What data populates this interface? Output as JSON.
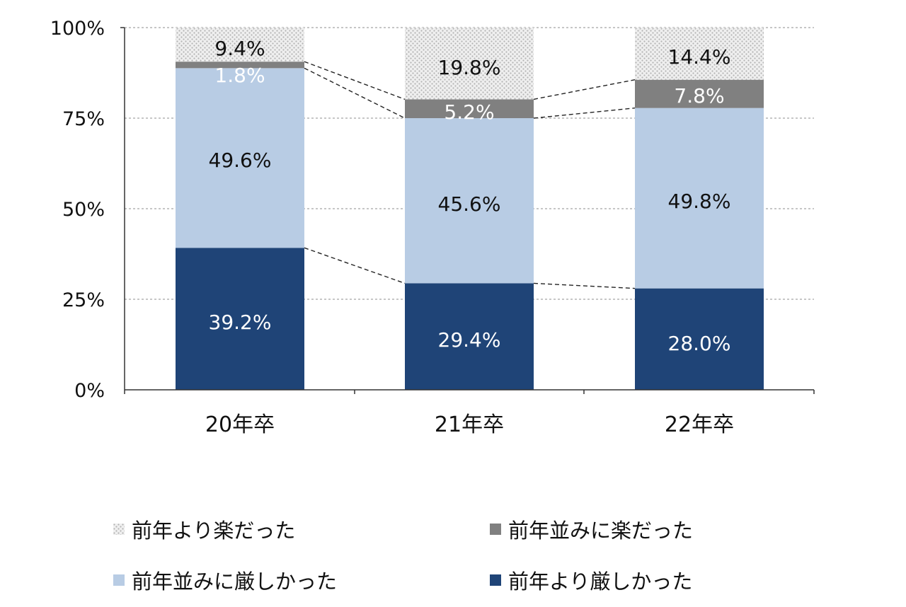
{
  "chart_data": {
    "type": "bar",
    "stacked": true,
    "categories": [
      "20年卒",
      "21年卒",
      "22年卒"
    ],
    "series": [
      {
        "name": "前年より厳しかった",
        "values": [
          39.2,
          29.4,
          28.0
        ],
        "color": "#1f4477",
        "label_color": "#ffffff"
      },
      {
        "name": "前年並みに厳しかった",
        "values": [
          49.6,
          45.6,
          49.8
        ],
        "color": "#b8cce4",
        "label_color": "#111111"
      },
      {
        "name": "前年並みに楽だった",
        "values": [
          1.8,
          5.2,
          7.8
        ],
        "color": "#808080",
        "label_color": "#ffffff"
      },
      {
        "name": "前年より楽だった",
        "values": [
          9.4,
          19.8,
          14.4
        ],
        "color": "#e6e6e6",
        "pattern": "dotted",
        "label_color": "#111111"
      }
    ],
    "y_ticks": [
      "0%",
      "25%",
      "50%",
      "75%",
      "100%"
    ],
    "ylim": [
      0,
      100
    ],
    "grid": true,
    "connector_lines": "dashed",
    "legend_position": "bottom"
  },
  "legend": {
    "items": [
      {
        "label": "前年より楽だった",
        "color": "#e6e6e6",
        "pattern": "dotted"
      },
      {
        "label": "前年並みに楽だった",
        "color": "#808080"
      },
      {
        "label": "前年並みに厳しかった",
        "color": "#b8cce4"
      },
      {
        "label": "前年より厳しかった",
        "color": "#1f4477"
      }
    ]
  }
}
